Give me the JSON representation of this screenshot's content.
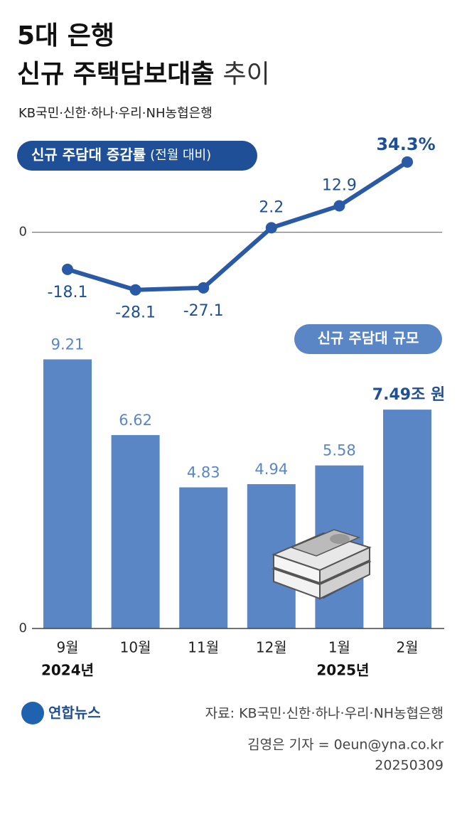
{
  "header": {
    "title": [
      "5대 은행",
      "신규 주택담보대출",
      "추이"
    ],
    "subtitle": "KB국민·신한·하나·우리·NH농협은행"
  },
  "chart_data": [
    {
      "type": "line",
      "label": "신규 주담대 증감률",
      "label_note": "(전월 대비)",
      "values": [
        -18.1,
        -28.1,
        -27.1,
        2.2,
        12.9,
        34.3
      ],
      "value_labels": [
        "-18.1",
        "-28.1",
        "-27.1",
        "2.2",
        "12.9",
        "34.3%"
      ],
      "color": "#2a5aa6",
      "ylim": [
        -40,
        45
      ],
      "yticks": [
        0
      ]
    },
    {
      "type": "bar",
      "label": "신규 주담대 규모",
      "categories": [
        "9월",
        "10월",
        "11월",
        "12월",
        "1월",
        "2월"
      ],
      "years": [
        "2024년",
        null,
        null,
        null,
        "2025년",
        null
      ],
      "values": [
        9.21,
        6.62,
        4.83,
        4.94,
        5.58,
        7.49
      ],
      "value_labels": [
        "9.21",
        "6.62",
        "4.83",
        "4.94",
        "5.58",
        "7.49조 원"
      ],
      "color": "#5b86c6",
      "ylim": [
        0,
        10
      ],
      "yticks": [
        0
      ]
    }
  ],
  "footer": {
    "logo": "연합뉴스",
    "source": "자료: KB국민·신한·하나·우리·NH농협은행",
    "reporter": "김영은 기자 = 0eun@yna.co.kr",
    "date": "20250309"
  }
}
